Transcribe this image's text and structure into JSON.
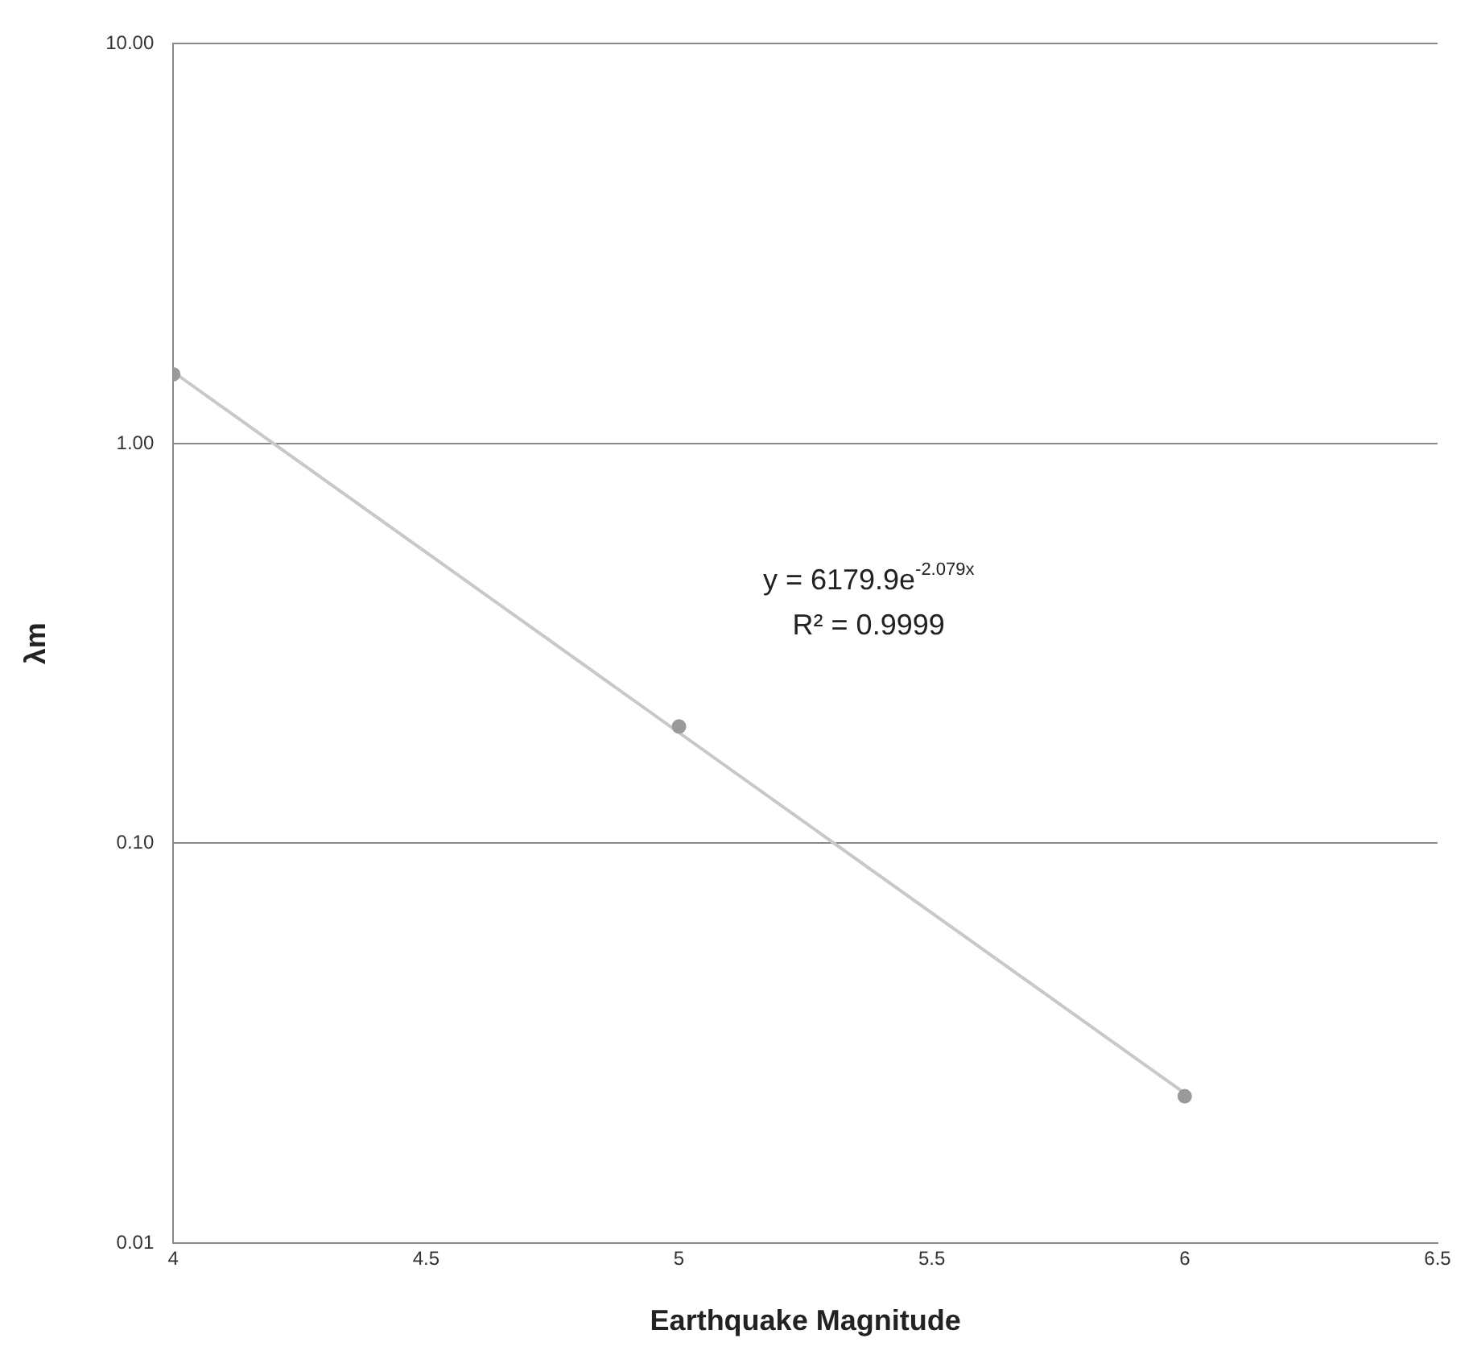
{
  "chart_data": {
    "type": "scatter",
    "xlabel": "Earthquake Magnitude",
    "ylabel": "λm",
    "series": [
      {
        "color": "#9a9a9a",
        "x": [
          4,
          5,
          6
        ],
        "values": [
          1.49,
          0.196,
          0.0233
        ],
        "marker": "circle"
      },
      {
        "type": "line",
        "color": "#c8c8c8",
        "x": [
          4,
          6
        ],
        "values": [
          1.51,
          0.0237
        ],
        "marker": "none"
      }
    ],
    "xlim": [
      4,
      6.5
    ],
    "xticks": [
      4,
      4.5,
      5,
      5.5,
      6,
      6.5
    ],
    "ylim": [
      0.01,
      10
    ],
    "yticks": [
      {
        "value": 0.01,
        "label": "0.01"
      },
      {
        "value": 0.1,
        "label": "0.10"
      },
      {
        "value": 1,
        "label": "1.00"
      },
      {
        "value": 10,
        "label": "10.00"
      }
    ],
    "log": "y",
    "grid": "y",
    "legend": false,
    "annotations": [
      "y = 6179.9e$^{-2.079x}$",
      "R² = 0.9999"
    ]
  }
}
